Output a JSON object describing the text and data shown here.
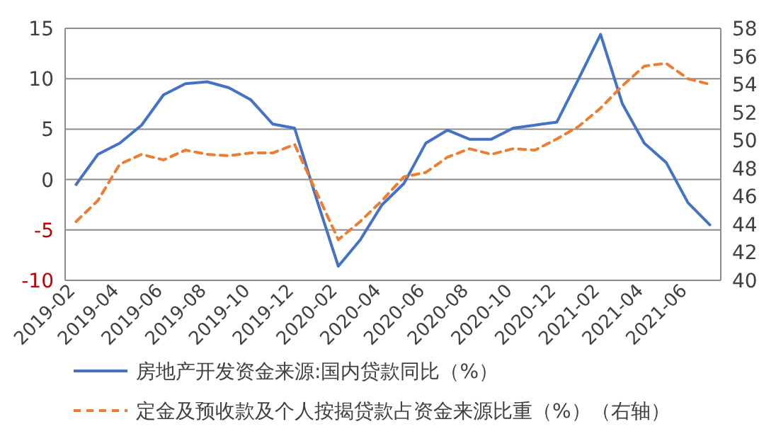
{
  "chart_data": {
    "type": "line",
    "categories": [
      "2019-02",
      null,
      "2019-04",
      null,
      "2019-06",
      null,
      "2019-08",
      null,
      "2019-10",
      null,
      "2019-12",
      null,
      "2020-02",
      null,
      "2020-04",
      null,
      "2020-06",
      null,
      "2020-08",
      null,
      "2020-10",
      null,
      "2020-12",
      null,
      "2021-02",
      null,
      "2021-04",
      null,
      "2021-06",
      null
    ],
    "series": [
      {
        "name": "房地产开发资金来源:国内贷款同比（%）",
        "color": "#4472c4",
        "line_style": "solid",
        "values": [
          -0.5,
          2.5,
          3.6,
          5.4,
          8.4,
          9.5,
          9.7,
          9.1,
          7.9,
          5.5,
          5.1,
          -1.9,
          -8.6,
          -6.0,
          -2.5,
          -0.4,
          3.6,
          4.9,
          4.0,
          4.0,
          5.1,
          5.4,
          5.7,
          10.0,
          14.4,
          7.5,
          3.6,
          1.7,
          -2.3,
          -4.5
        ]
      },
      {
        "name": "定金及预收款及个人按揭贷款占资金来源比重（%）（右轴）",
        "color": "#ed7d31",
        "line_style": "dashed",
        "axis": "y2",
        "values": [
          44.2,
          45.7,
          48.3,
          49.0,
          48.6,
          49.3,
          49.0,
          48.9,
          49.1,
          49.1,
          49.7,
          46.3,
          42.9,
          44.2,
          45.7,
          47.4,
          47.7,
          48.8,
          49.4,
          49.0,
          49.4,
          49.3,
          50.1,
          51.0,
          52.3,
          53.9,
          55.3,
          55.5,
          54.4,
          54.0
        ]
      }
    ],
    "ylim": [
      -10,
      15
    ],
    "yticks": [
      -10,
      -5,
      0,
      5,
      10,
      15
    ],
    "y2lim": [
      40,
      58
    ],
    "y2ticks": [
      40,
      42,
      44,
      46,
      48,
      50,
      52,
      54,
      56,
      58
    ],
    "grid": "y",
    "legend": "bottom",
    "marker": "none"
  }
}
